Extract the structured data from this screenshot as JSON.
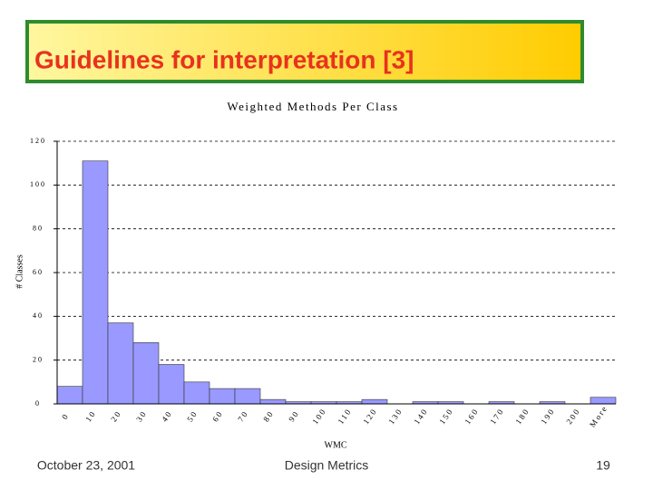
{
  "slide": {
    "title": "Guidelines for interpretation [3]",
    "date": "October 23, 2001",
    "footer": "Design Metrics",
    "page": "19"
  },
  "chart_data": {
    "type": "bar",
    "title": "Weighted Methods Per Class",
    "x_label": "WMC",
    "y_label": "# Classes",
    "categories": [
      "0",
      "10",
      "20",
      "30",
      "40",
      "50",
      "60",
      "70",
      "80",
      "90",
      "100",
      "110",
      "120",
      "130",
      "140",
      "150",
      "160",
      "170",
      "180",
      "190",
      "200",
      "More"
    ],
    "values": [
      8,
      111,
      37,
      28,
      18,
      10,
      7,
      7,
      2,
      1,
      1,
      1,
      2,
      0,
      1,
      1,
      0,
      1,
      0,
      1,
      0,
      3
    ],
    "color": "#9999ff",
    "ylim": [
      0,
      120
    ],
    "yticks": [
      0,
      20,
      40,
      60,
      80,
      100,
      120
    ],
    "grid": true
  }
}
